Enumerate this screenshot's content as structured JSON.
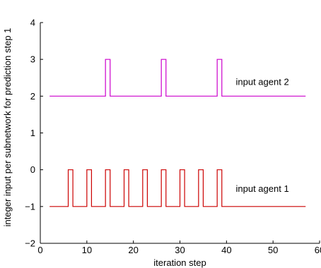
{
  "chart_data": {
    "type": "line",
    "title": "",
    "xlabel": "iteration step",
    "ylabel": "integer input per subnetwork for prediction step 1",
    "xlim": [
      0,
      60
    ],
    "ylim": [
      -2,
      4
    ],
    "xticks": [
      0,
      10,
      20,
      30,
      40,
      50,
      60
    ],
    "yticks": [
      -2,
      -1,
      0,
      1,
      2,
      3,
      4
    ],
    "grid": false,
    "legend": "none",
    "series": [
      {
        "name": "input agent 1",
        "color": "#cc0000",
        "base": -1,
        "high": 0,
        "x_start": 2,
        "x_end": 57,
        "pulses": [
          [
            6,
            7
          ],
          [
            10,
            11
          ],
          [
            14,
            15
          ],
          [
            18,
            19
          ],
          [
            22,
            23
          ],
          [
            26,
            27
          ],
          [
            30,
            31
          ],
          [
            34,
            35
          ],
          [
            38,
            39
          ]
        ]
      },
      {
        "name": "input agent 2",
        "color": "#cc00cc",
        "base": 2,
        "high": 3,
        "x_start": 2,
        "x_end": 57,
        "pulses": [
          [
            14,
            15
          ],
          [
            26,
            27
          ],
          [
            38,
            39
          ]
        ]
      }
    ],
    "annotations": [
      {
        "text": "input agent 2",
        "x": 42,
        "y": 2.3
      },
      {
        "text": "input agent 1",
        "x": 42,
        "y": -0.6
      }
    ]
  }
}
